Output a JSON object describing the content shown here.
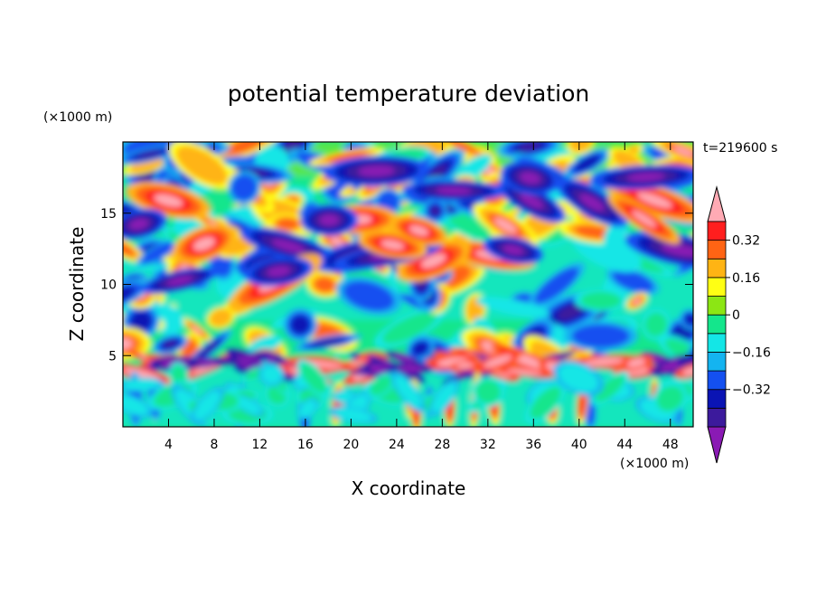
{
  "chart_data": {
    "type": "heatmap",
    "title": "potential temperature deviation",
    "xlabel": "X coordinate",
    "ylabel": "Z coordinate",
    "x_unit": "(×1000 m)",
    "y_unit": "(×1000 m)",
    "time_label": "t=219600 s",
    "xlim": [
      0,
      50
    ],
    "ylim": [
      0,
      20
    ],
    "x_ticks": [
      4,
      8,
      12,
      16,
      20,
      24,
      28,
      32,
      36,
      40,
      44,
      48
    ],
    "y_ticks": [
      5,
      10,
      15
    ],
    "colorbar": {
      "levels": [
        -0.48,
        -0.4,
        -0.32,
        -0.24,
        -0.16,
        -0.08,
        0,
        0.08,
        0.16,
        0.24,
        0.32,
        0.4
      ],
      "labeled_levels": [
        -0.32,
        -0.16,
        0,
        0.16,
        0.32
      ],
      "labels": [
        "−0.32",
        "−0.16",
        "0",
        "0.16",
        "0.32"
      ],
      "colors": [
        "#8a1ab4",
        "#3c1a9c",
        "#0a14b4",
        "#1450f0",
        "#14b4f0",
        "#14e6e6",
        "#14e68c",
        "#8ce614",
        "#ffff14",
        "#ffb414",
        "#ff6414",
        "#ff1e1e",
        "#ffaab4"
      ],
      "extend": "both"
    }
  }
}
